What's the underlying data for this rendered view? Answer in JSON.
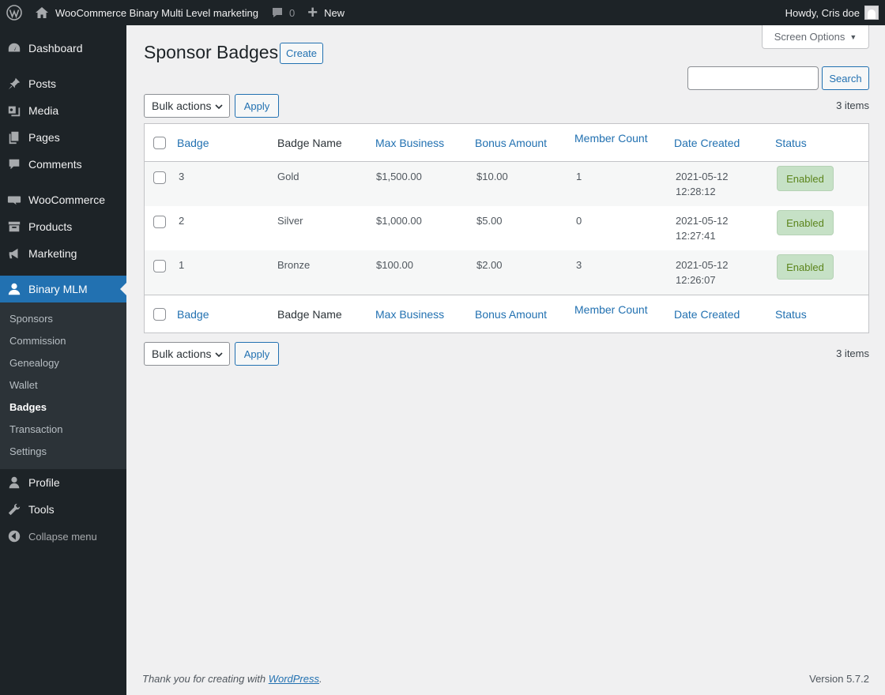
{
  "admin_bar": {
    "site_name": "WooCommerce Binary Multi Level marketing",
    "comments_count": "0",
    "new_label": "New",
    "howdy": "Howdy, Cris doe"
  },
  "sidebar": {
    "items": [
      {
        "label": "Dashboard",
        "icon": "dashboard-icon"
      },
      {
        "label": "Posts",
        "icon": "pushpin-icon"
      },
      {
        "label": "Media",
        "icon": "media-icon"
      },
      {
        "label": "Pages",
        "icon": "pages-icon"
      },
      {
        "label": "Comments",
        "icon": "comment-icon"
      },
      {
        "label": "WooCommerce",
        "icon": "woo-icon"
      },
      {
        "label": "Products",
        "icon": "archive-icon"
      },
      {
        "label": "Marketing",
        "icon": "megaphone-icon"
      },
      {
        "label": "Binary MLM",
        "icon": "user-icon"
      },
      {
        "label": "Profile",
        "icon": "profile-icon"
      },
      {
        "label": "Tools",
        "icon": "wrench-icon"
      },
      {
        "label": "Collapse menu",
        "icon": "collapse-icon"
      }
    ],
    "submenu": [
      "Sponsors",
      "Commission",
      "Genealogy",
      "Wallet",
      "Badges",
      "Transaction",
      "Settings"
    ]
  },
  "page": {
    "screen_options": "Screen Options",
    "title": "Sponsor Badges",
    "create_label": "Create",
    "search_value": "",
    "search_label": "Search",
    "bulk_actions_selected": "Bulk actions",
    "apply_label": "Apply",
    "items_count": "3 items"
  },
  "table": {
    "columns": [
      "Badge",
      "Badge Name",
      "Max Business",
      "Bonus Amount",
      "Member Count",
      "Date Created",
      "Status"
    ],
    "rows": [
      {
        "badge": "3",
        "name": "Gold",
        "max_business": "$1,500.00",
        "bonus": "$10.00",
        "members": "1",
        "date": "2021-05-12",
        "time": "12:28:12",
        "status": "Enabled"
      },
      {
        "badge": "2",
        "name": "Silver",
        "max_business": "$1,000.00",
        "bonus": "$5.00",
        "members": "0",
        "date": "2021-05-12",
        "time": "12:27:41",
        "status": "Enabled"
      },
      {
        "badge": "1",
        "name": "Bronze",
        "max_business": "$100.00",
        "bonus": "$2.00",
        "members": "3",
        "date": "2021-05-12",
        "time": "12:26:07",
        "status": "Enabled"
      }
    ]
  },
  "footer": {
    "thanks_prefix": "Thank you for creating with ",
    "thanks_link": "WordPress",
    "thanks_suffix": ".",
    "version": "Version 5.7.2"
  }
}
